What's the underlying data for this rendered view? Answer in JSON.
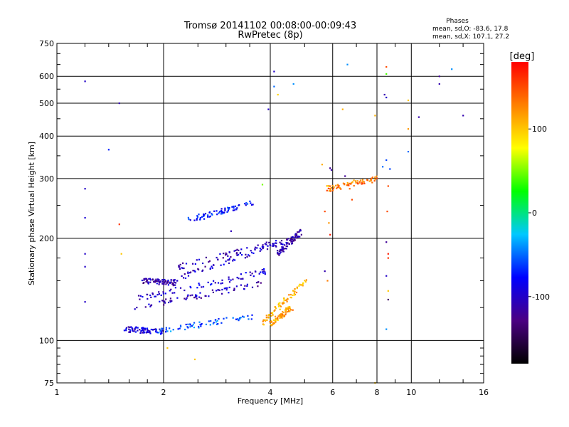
{
  "chart_data": {
    "type": "scatter",
    "title": "Tromsø 20141102 00:08:00-00:09:43",
    "subtitle": "RwPretec (8p)",
    "xlabel": "Frequency [MHz]",
    "ylabel": "Stationary phase Virtual Height [km]",
    "x_scale": "log",
    "y_scale": "log",
    "xlim": [
      1,
      16
    ],
    "ylim": [
      75,
      750
    ],
    "x_ticks": [
      "1",
      "2",
      "4",
      "6",
      "8",
      "10",
      "16"
    ],
    "x_tick_values": [
      1,
      2,
      4,
      6,
      8,
      10,
      16
    ],
    "y_ticks": [
      "75",
      "100",
      "200",
      "300",
      "400",
      "500",
      "600",
      "750"
    ],
    "y_tick_values": [
      75,
      100,
      200,
      300,
      400,
      500,
      600,
      750
    ],
    "grid": true,
    "legend": {
      "title": "Phases",
      "entries": [
        "mean, sd,O: -83.6, 17.8",
        "mean, sd,X: 107.1, 27.2"
      ]
    },
    "colorbar": {
      "label": "[deg]",
      "min": -180,
      "max": 180,
      "ticks": [
        "100",
        "0",
        "-100"
      ],
      "tick_values": [
        100,
        0,
        -100
      ],
      "stops": [
        "#000000",
        "#4b0082",
        "#0000ff",
        "#00c8ff",
        "#00ff00",
        "#ffff00",
        "#ff8000",
        "#ff0000"
      ]
    },
    "traces": [
      {
        "x0": 1.55,
        "x1": 2.0,
        "h0": 108,
        "h1": 106,
        "phase": -95
      },
      {
        "x0": 1.9,
        "x1": 3.6,
        "h0": 106,
        "h1": 118,
        "phase": -55
      },
      {
        "x0": 1.65,
        "x1": 3.8,
        "h0": 125,
        "h1": 147,
        "phase": -105
      },
      {
        "x0": 1.7,
        "x1": 3.9,
        "h0": 133,
        "h1": 160,
        "phase": -95
      },
      {
        "x0": 1.75,
        "x1": 2.15,
        "h0": 150,
        "h1": 148,
        "phase": -110
      },
      {
        "x0": 2.0,
        "x1": 4.6,
        "h0": 148,
        "h1": 198,
        "phase": -100
      },
      {
        "x0": 2.2,
        "x1": 4.7,
        "h0": 165,
        "h1": 200,
        "phase": -105
      },
      {
        "x0": 2.35,
        "x1": 3.6,
        "h0": 226,
        "h1": 255,
        "phase": -75
      },
      {
        "x0": 3.8,
        "x1": 5.1,
        "h0": 113,
        "h1": 152,
        "phase": 110
      },
      {
        "x0": 4.0,
        "x1": 4.6,
        "h0": 112,
        "h1": 125,
        "phase": 115
      },
      {
        "x0": 4.2,
        "x1": 4.9,
        "h0": 180,
        "h1": 210,
        "phase": -115
      },
      {
        "x0": 5.8,
        "x1": 8.0,
        "h0": 280,
        "h1": 300,
        "phase": 135
      }
    ],
    "scattered_points": [
      {
        "x": 1.2,
        "y": 580,
        "phase": -100
      },
      {
        "x": 1.2,
        "y": 280,
        "phase": -100
      },
      {
        "x": 1.2,
        "y": 230,
        "phase": -95
      },
      {
        "x": 1.2,
        "y": 180,
        "phase": -100
      },
      {
        "x": 1.2,
        "y": 165,
        "phase": -100
      },
      {
        "x": 1.2,
        "y": 130,
        "phase": -100
      },
      {
        "x": 1.5,
        "y": 500,
        "phase": -110
      },
      {
        "x": 1.5,
        "y": 220,
        "phase": 160
      },
      {
        "x": 1.52,
        "y": 180,
        "phase": 100
      },
      {
        "x": 1.4,
        "y": 365,
        "phase": -70
      },
      {
        "x": 2.45,
        "y": 88,
        "phase": 100
      },
      {
        "x": 2.05,
        "y": 95,
        "phase": 100
      },
      {
        "x": 4.1,
        "y": 620,
        "phase": -100
      },
      {
        "x": 4.1,
        "y": 560,
        "phase": -50
      },
      {
        "x": 4.2,
        "y": 530,
        "phase": 95
      },
      {
        "x": 4.65,
        "y": 570,
        "phase": -40
      },
      {
        "x": 3.95,
        "y": 480,
        "phase": -100
      },
      {
        "x": 3.1,
        "y": 210,
        "phase": -105
      },
      {
        "x": 3.8,
        "y": 288,
        "phase": 50
      },
      {
        "x": 5.6,
        "y": 330,
        "phase": 110
      },
      {
        "x": 5.9,
        "y": 322,
        "phase": -120
      },
      {
        "x": 5.95,
        "y": 318,
        "phase": -115
      },
      {
        "x": 5.8,
        "y": 285,
        "phase": 80
      },
      {
        "x": 5.7,
        "y": 240,
        "phase": 150
      },
      {
        "x": 5.85,
        "y": 222,
        "phase": 120
      },
      {
        "x": 5.9,
        "y": 205,
        "phase": 170
      },
      {
        "x": 5.7,
        "y": 160,
        "phase": -110
      },
      {
        "x": 5.8,
        "y": 150,
        "phase": 130
      },
      {
        "x": 6.4,
        "y": 480,
        "phase": 110
      },
      {
        "x": 6.6,
        "y": 650,
        "phase": -40
      },
      {
        "x": 6.5,
        "y": 305,
        "phase": -120
      },
      {
        "x": 6.7,
        "y": 280,
        "phase": 140
      },
      {
        "x": 6.8,
        "y": 260,
        "phase": 150
      },
      {
        "x": 7.9,
        "y": 460,
        "phase": 110
      },
      {
        "x": 8.5,
        "y": 640,
        "phase": 150
      },
      {
        "x": 8.5,
        "y": 610,
        "phase": 40
      },
      {
        "x": 8.4,
        "y": 530,
        "phase": -110
      },
      {
        "x": 8.5,
        "y": 520,
        "phase": -100
      },
      {
        "x": 8.5,
        "y": 340,
        "phase": -60
      },
      {
        "x": 8.3,
        "y": 325,
        "phase": -50
      },
      {
        "x": 8.7,
        "y": 320,
        "phase": -60
      },
      {
        "x": 8.6,
        "y": 285,
        "phase": 150
      },
      {
        "x": 8.55,
        "y": 240,
        "phase": 150
      },
      {
        "x": 8.5,
        "y": 195,
        "phase": -120
      },
      {
        "x": 8.6,
        "y": 180,
        "phase": 170
      },
      {
        "x": 8.6,
        "y": 175,
        "phase": 160
      },
      {
        "x": 8.5,
        "y": 155,
        "phase": -100
      },
      {
        "x": 8.6,
        "y": 140,
        "phase": 100
      },
      {
        "x": 8.6,
        "y": 132,
        "phase": -140
      },
      {
        "x": 8.5,
        "y": 108,
        "phase": -40
      },
      {
        "x": 9.8,
        "y": 510,
        "phase": 100
      },
      {
        "x": 9.8,
        "y": 420,
        "phase": 120
      },
      {
        "x": 9.8,
        "y": 360,
        "phase": -50
      },
      {
        "x": 10.5,
        "y": 455,
        "phase": -110
      },
      {
        "x": 12.0,
        "y": 600,
        "phase": -120
      },
      {
        "x": 12.0,
        "y": 570,
        "phase": -110
      },
      {
        "x": 13.0,
        "y": 630,
        "phase": -40
      },
      {
        "x": 14.0,
        "y": 460,
        "phase": -110
      },
      {
        "x": 7.9,
        "y": 75,
        "phase": 100
      }
    ]
  }
}
